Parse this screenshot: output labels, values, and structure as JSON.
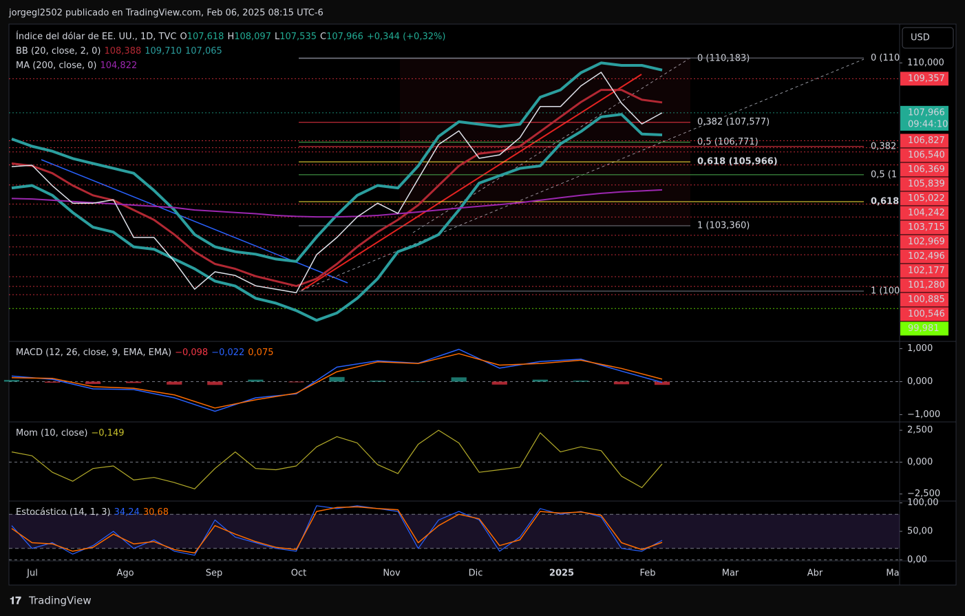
{
  "header": {
    "attribution": "jorgegl2502 publicado en TradingView.com, Feb 06, 2025 08:15 UTC-6",
    "currency": "USD",
    "brand": "TradingView"
  },
  "time_axis": {
    "labels": [
      "Jul",
      "Ago",
      "Sep",
      "Oct",
      "Nov",
      "Dic",
      "2025",
      "Feb",
      "Mar",
      "Abr",
      "Ma"
    ]
  },
  "chart_data": [
    {
      "type": "line",
      "legend": [
        [
          {
            "text": "Índice del dólar de EE. UU., 1D, TVC",
            "color": "#d1d4dc"
          },
          {
            "text": "O",
            "color": "#d1d4dc"
          },
          {
            "text": "107,618",
            "color": "#22ab94"
          },
          {
            "text": "H",
            "color": "#d1d4dc"
          },
          {
            "text": "108,097",
            "color": "#22ab94"
          },
          {
            "text": "L",
            "color": "#d1d4dc"
          },
          {
            "text": "107,535",
            "color": "#22ab94"
          },
          {
            "text": "C",
            "color": "#d1d4dc"
          },
          {
            "text": "107,966",
            "color": "#22ab94"
          },
          {
            "text": "+0,344 (+0,32%)",
            "color": "#22ab94"
          }
        ],
        [
          {
            "text": "BB (20, close, 2, 0)",
            "color": "#d1d4dc"
          },
          {
            "text": "108,388",
            "color": "#b22833"
          },
          {
            "text": "109,710",
            "color": "#2b9e9e"
          },
          {
            "text": "107,065",
            "color": "#2b9e9e"
          }
        ],
        [
          {
            "text": "MA (200, close, 0)",
            "color": "#d1d4dc"
          },
          {
            "text": "104,822",
            "color": "#9c27b0"
          }
        ]
      ],
      "ylim": [
        98.67,
        111.5
      ],
      "yticks": [
        {
          "value": 110,
          "label": "110,000"
        }
      ],
      "series": [
        {
          "color": "#2b9e9e",
          "width": 4,
          "values": [
            106.9,
            106.6,
            106.4,
            106.1,
            105.9,
            105.7,
            105.5,
            104.8,
            104.0,
            103.0,
            102.5,
            102.3,
            102.2,
            102.0,
            101.9,
            102.9,
            103.8,
            104.6,
            105.0,
            104.9,
            105.8,
            107.0,
            107.6,
            107.5,
            107.4,
            107.5,
            108.6,
            108.9,
            109.6,
            110.0,
            109.9,
            109.9,
            109.71
          ]
        },
        {
          "color": "#2b9e9e",
          "width": 4,
          "values": [
            104.9,
            105.0,
            104.6,
            103.9,
            103.3,
            103.1,
            102.5,
            102.4,
            102.0,
            101.6,
            101.1,
            100.9,
            100.4,
            100.2,
            99.9,
            99.5,
            99.8,
            100.4,
            101.2,
            102.3,
            102.6,
            103.0,
            104.0,
            105.1,
            105.4,
            105.7,
            105.8,
            106.7,
            107.2,
            107.8,
            107.9,
            107.1,
            107.065
          ]
        },
        {
          "color": "#b22833",
          "width": 3,
          "values": [
            105.9,
            105.8,
            105.5,
            105.0,
            104.6,
            104.4,
            104.0,
            103.6,
            103.0,
            102.3,
            101.8,
            101.6,
            101.3,
            101.1,
            100.9,
            101.2,
            101.8,
            102.5,
            103.1,
            103.6,
            104.2,
            105.0,
            105.8,
            106.3,
            106.4,
            106.6,
            107.2,
            107.8,
            108.4,
            108.9,
            108.9,
            108.5,
            108.388
          ]
        },
        {
          "color": "#9c27b0",
          "width": 2,
          "values": [
            104.47,
            104.45,
            104.4,
            104.35,
            104.3,
            104.25,
            104.2,
            104.15,
            104.1,
            104.0,
            103.95,
            103.9,
            103.85,
            103.78,
            103.74,
            103.72,
            103.72,
            103.74,
            103.78,
            103.85,
            103.92,
            104.0,
            104.08,
            104.15,
            104.22,
            104.3,
            104.4,
            104.5,
            104.6,
            104.68,
            104.74,
            104.78,
            104.822
          ]
        },
        {
          "color": "#e0e3eb",
          "width": 1.5,
          "values": [
            105.77,
            105.83,
            104.99,
            104.28,
            104.28,
            104.42,
            102.88,
            102.88,
            101.9,
            100.77,
            101.48,
            101.33,
            100.91,
            100.77,
            100.63,
            102.18,
            102.88,
            103.72,
            104.28,
            103.86,
            105.27,
            106.67,
            107.23,
            106.11,
            106.25,
            106.95,
            108.22,
            108.22,
            109.06,
            109.62,
            108.36,
            107.51,
            107.966
          ]
        }
      ],
      "fib_main": [
        {
          "value": 110.183,
          "label": "0 (110,183)",
          "color": "#787b86"
        },
        {
          "value": 107.577,
          "label": "0,382 (107,577)",
          "color": "#f23645"
        },
        {
          "value": 106.771,
          "label": "0,5 (106,771)",
          "color": "#4caf50"
        },
        {
          "value": 105.966,
          "label": "0,618 (105,966)",
          "color": "#ffeb3b"
        },
        {
          "value": 103.36,
          "label": "1 (103,360)",
          "color": "#787b86"
        }
      ],
      "fib_second": [
        {
          "value": 110.2,
          "label": "0 (110",
          "color": "#787b86"
        },
        {
          "value": 106.59,
          "label": "0,382",
          "color": "#f23645"
        },
        {
          "value": 105.44,
          "label": "0,5 (1",
          "color": "#4caf50"
        },
        {
          "value": 104.34,
          "label": "0,618",
          "color": "#ffeb3b"
        },
        {
          "value": 100.69,
          "label": "1 (100",
          "color": "#787b86"
        }
      ],
      "price_tags": [
        {
          "value": 109.357,
          "label": "109,357",
          "color": "#f23645"
        },
        {
          "value": 107.966,
          "label": "107,966",
          "time": "09:44:10",
          "color": "#22ab94"
        },
        {
          "value": 106.827,
          "label": "106,827",
          "color": "#f23645"
        },
        {
          "value": 106.54,
          "label": "106,540",
          "color": "#f23645"
        },
        {
          "value": 106.369,
          "label": "106,369",
          "color": "#f23645"
        },
        {
          "value": 105.839,
          "label": "105,839",
          "color": "#f23645"
        },
        {
          "value": 105.022,
          "label": "105,022",
          "color": "#f23645"
        },
        {
          "value": 104.242,
          "label": "104,242",
          "color": "#f23645"
        },
        {
          "value": 103.715,
          "label": "103,715",
          "color": "#f23645"
        },
        {
          "value": 102.969,
          "label": "102,969",
          "color": "#f23645"
        },
        {
          "value": 102.496,
          "label": "102,496",
          "color": "#f23645"
        },
        {
          "value": 102.177,
          "label": "102,177",
          "color": "#f23645"
        },
        {
          "value": 101.28,
          "label": "101,280",
          "color": "#f23645"
        },
        {
          "value": 100.885,
          "label": "100,885",
          "color": "#f23645"
        },
        {
          "value": 100.546,
          "label": "100,546",
          "color": "#f23645"
        },
        {
          "value": 99.981,
          "label": "99,981",
          "color": "#76ff03"
        }
      ]
    },
    {
      "type": "line",
      "legend": [
        [
          {
            "text": "MACD (12, 26, close, 9, EMA, EMA)",
            "color": "#d1d4dc"
          },
          {
            "text": "−0,098",
            "color": "#f23645"
          },
          {
            "text": "−0,022",
            "color": "#2962ff"
          },
          {
            "text": "0,075",
            "color": "#ff6d00"
          }
        ]
      ],
      "ylim": [
        -1.2,
        1.2
      ],
      "yticks": [
        {
          "value": 1,
          "label": "1,000"
        },
        {
          "value": 0,
          "label": "0,000"
        },
        {
          "value": -1,
          "label": "−1,000"
        }
      ],
      "series": [
        {
          "color": "#26a69a",
          "style": "histogram",
          "values": [
            0.05,
            -0.03,
            -0.07,
            -0.04,
            -0.09,
            -0.1,
            0.06,
            -0.02,
            0.14,
            0.03,
            0.01,
            0.13,
            -0.09,
            0.06,
            0.03,
            -0.08,
            -0.098
          ]
        },
        {
          "color": "#2962ff",
          "width": 1.5,
          "values": [
            0.17,
            0.07,
            -0.22,
            -0.24,
            -0.49,
            -0.9,
            -0.49,
            -0.37,
            0.44,
            0.63,
            0.56,
            0.98,
            0.41,
            0.61,
            0.68,
            0.32,
            -0.022
          ]
        },
        {
          "color": "#ff6d00",
          "width": 1.5,
          "values": [
            0.12,
            0.1,
            -0.15,
            -0.2,
            -0.4,
            -0.8,
            -0.55,
            -0.35,
            0.3,
            0.6,
            0.55,
            0.85,
            0.5,
            0.55,
            0.65,
            0.4,
            0.075
          ]
        }
      ]
    },
    {
      "type": "line",
      "legend": [
        [
          {
            "text": "Mom (10, close)",
            "color": "#d1d4dc"
          },
          {
            "text": "−0,149",
            "color": "#c9c22d"
          }
        ]
      ],
      "ylim": [
        -3,
        3.1
      ],
      "yticks": [
        {
          "value": 2.5,
          "label": "2,500"
        },
        {
          "value": 0,
          "label": "0,000"
        },
        {
          "value": -2.5,
          "label": "−2,500"
        }
      ],
      "series": [
        {
          "color": "#b5ad2a",
          "width": 1.2,
          "values": [
            0.8,
            0.5,
            -0.8,
            -1.5,
            -0.5,
            -0.3,
            -1.4,
            -1.2,
            -1.6,
            -2.1,
            -0.5,
            0.8,
            -0.5,
            -0.6,
            -0.3,
            1.2,
            2.0,
            1.5,
            -0.2,
            -0.9,
            1.4,
            2.5,
            1.5,
            -0.8,
            -0.6,
            -0.4,
            2.3,
            0.8,
            1.2,
            0.9,
            -1.1,
            -2.0,
            -0.149
          ]
        }
      ]
    },
    {
      "type": "line",
      "legend": [
        [
          {
            "text": "Estocástico (14, 1, 3)",
            "color": "#d1d4dc"
          },
          {
            "text": "34,24",
            "color": "#2962ff"
          },
          {
            "text": "30,68",
            "color": "#ff6d00"
          }
        ]
      ],
      "ylim": [
        -2,
        102
      ],
      "yticks": [
        {
          "value": 100,
          "label": "100,00"
        },
        {
          "value": 50,
          "label": "50,00"
        },
        {
          "value": 0,
          "label": "0,00"
        }
      ],
      "band": [
        20,
        80
      ],
      "series": [
        {
          "color": "#2962ff",
          "width": 1.2,
          "values": [
            60,
            20,
            30,
            10,
            25,
            50,
            20,
            35,
            15,
            8,
            70,
            40,
            30,
            20,
            15,
            95,
            90,
            95,
            90,
            85,
            20,
            70,
            85,
            70,
            15,
            40,
            90,
            80,
            85,
            75,
            20,
            15,
            34.24
          ]
        },
        {
          "color": "#ff6d00",
          "width": 1.5,
          "values": [
            55,
            30,
            28,
            15,
            22,
            45,
            28,
            32,
            18,
            12,
            60,
            45,
            32,
            22,
            18,
            85,
            92,
            93,
            90,
            88,
            30,
            60,
            80,
            72,
            25,
            35,
            85,
            82,
            84,
            78,
            30,
            18,
            30.68
          ]
        }
      ]
    }
  ]
}
